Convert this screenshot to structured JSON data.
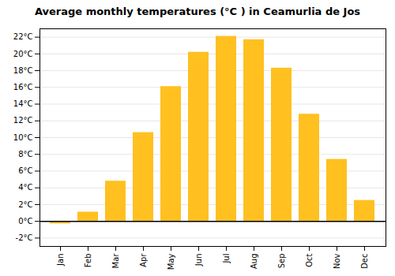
{
  "chart_data": {
    "type": "bar",
    "title": "Average monthly temperatures (°C ) in Ceamurlia de Jos",
    "categories": [
      "Jan",
      "Feb",
      "Mar",
      "Apr",
      "May",
      "Jun",
      "Jul",
      "Aug",
      "Sep",
      "Oct",
      "Nov",
      "Dec"
    ],
    "values": [
      -0.3,
      1.1,
      4.8,
      10.6,
      16.1,
      20.2,
      22.1,
      21.7,
      18.3,
      12.8,
      7.4,
      2.5
    ],
    "color": "#FFC020",
    "ylim": [
      -3,
      23
    ],
    "yticks": [
      {
        "value": -2,
        "label": "-2°C"
      },
      {
        "value": 0,
        "label": "0°C"
      },
      {
        "value": 2,
        "label": "2°C"
      },
      {
        "value": 4,
        "label": "4°C"
      },
      {
        "value": 6,
        "label": "6°C"
      },
      {
        "value": 8,
        "label": "8°C"
      },
      {
        "value": 10,
        "label": "10°C"
      },
      {
        "value": 12,
        "label": "12°C"
      },
      {
        "value": 14,
        "label": "14°C"
      },
      {
        "value": 16,
        "label": "16°C"
      },
      {
        "value": 18,
        "label": "18°C"
      },
      {
        "value": 20,
        "label": "20°C"
      },
      {
        "value": 22,
        "label": "22°C"
      }
    ],
    "grid": true
  }
}
